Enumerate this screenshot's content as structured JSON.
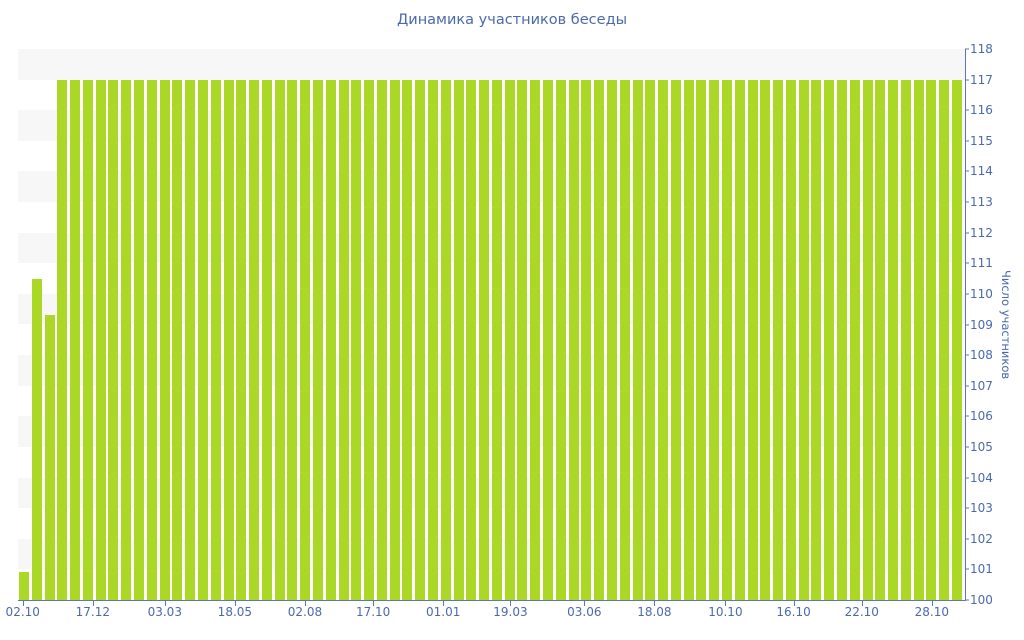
{
  "page": {
    "background": "#ffffff"
  },
  "chart_data": {
    "type": "bar",
    "title": "Динамика участников беседы",
    "xlabel": "",
    "ylabel": "Число участников",
    "ylim": [
      100,
      118
    ],
    "grid": "alternating-horizontal-bands",
    "legend": null,
    "bar_color": "#abd827",
    "band_color": "#f7f7f7",
    "text_color": "#4a6aad",
    "axis_color": "#5b76bd",
    "y_ticks": [
      100,
      101,
      102,
      103,
      104,
      105,
      106,
      107,
      108,
      109,
      110,
      111,
      112,
      113,
      114,
      115,
      116,
      117,
      118
    ],
    "x_ticks": [
      {
        "label": "02.10",
        "pct": 0.5
      },
      {
        "label": "17.12",
        "pct": 7.9
      },
      {
        "label": "03.03",
        "pct": 15.5
      },
      {
        "label": "18.05",
        "pct": 22.9
      },
      {
        "label": "02.08",
        "pct": 30.3
      },
      {
        "label": "17.10",
        "pct": 37.5
      },
      {
        "label": "01.01",
        "pct": 44.9
      },
      {
        "label": "19.03",
        "pct": 52.0
      },
      {
        "label": "03.06",
        "pct": 59.8
      },
      {
        "label": "18.08",
        "pct": 67.2
      },
      {
        "label": "10.10",
        "pct": 74.7
      },
      {
        "label": "16.10",
        "pct": 81.9
      },
      {
        "label": "22.10",
        "pct": 89.1
      },
      {
        "label": "28.10",
        "pct": 96.5
      }
    ],
    "values": [
      100.9,
      110.5,
      109.3,
      117,
      117,
      117,
      117,
      117,
      117,
      117,
      117,
      117,
      117,
      117,
      117,
      117,
      117,
      117,
      117,
      117,
      117,
      117,
      117,
      117,
      117,
      117,
      117,
      117,
      117,
      117,
      117,
      117,
      117,
      117,
      117,
      117,
      117,
      117,
      117,
      117,
      117,
      117,
      117,
      117,
      117,
      117,
      117,
      117,
      117,
      117,
      117,
      117,
      117,
      117,
      117,
      117,
      117,
      117,
      117,
      117,
      117,
      117,
      117,
      117,
      117,
      117,
      117,
      117,
      117,
      117,
      117,
      117,
      117,
      117
    ]
  }
}
